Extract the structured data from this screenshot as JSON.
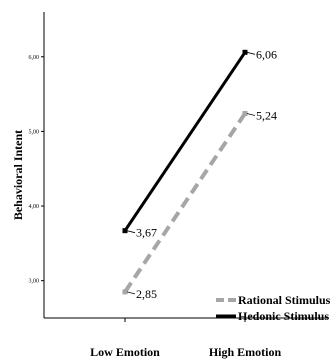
{
  "chart_data": {
    "type": "line",
    "ylabel": "Behavioral Intent",
    "categories": [
      "Low Emotion",
      "High Emotion"
    ],
    "ylim": [
      2.5,
      6.6
    ],
    "yticks": [
      3.0,
      4.0,
      5.0,
      6.0
    ],
    "ytick_labels": [
      "3,00",
      "4,00",
      "5,00",
      "6,00"
    ],
    "grid": false,
    "legend_position": "bottom-right",
    "series": [
      {
        "name": "Rational Stimulus",
        "values": [
          2.85,
          5.24
        ],
        "labels": [
          "2,85",
          "5,24"
        ],
        "color": "#a6a6a6",
        "line_style": "dashed",
        "marker": "square"
      },
      {
        "name": "Hedonic Stimulus",
        "values": [
          3.67,
          6.06
        ],
        "labels": [
          "3,67",
          "6,06"
        ],
        "color": "#000000",
        "line_style": "solid",
        "marker": "square"
      }
    ]
  }
}
